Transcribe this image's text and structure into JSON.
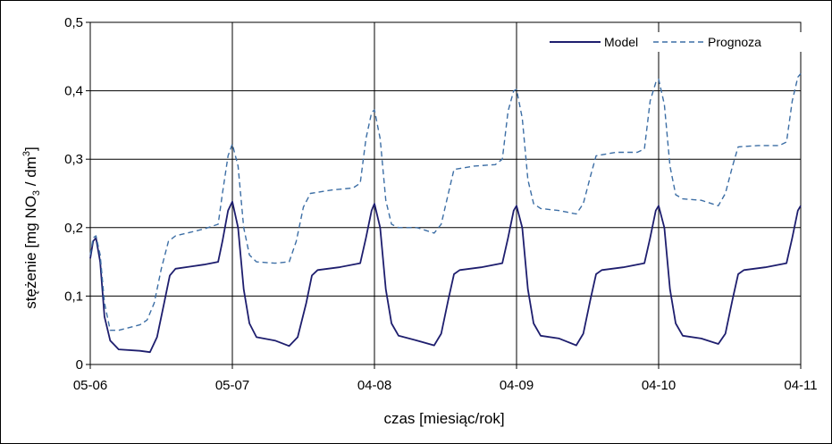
{
  "chart_data": {
    "type": "line",
    "title": "",
    "xlabel": "czas [miesiąc/rok]",
    "ylabel": "stężenie [mg NO₃ / dm³]",
    "ylabel_parts": {
      "main": "stężenie [mg NO",
      "sub": "3",
      "mid": " / dm",
      "sup": "3",
      "end": "]"
    },
    "x_categories": [
      "05-06",
      "05-07",
      "04-08",
      "04-09",
      "04-10",
      "04-11"
    ],
    "y_ticks": [
      "0",
      "0,1",
      "0,2",
      "0,3",
      "0,4",
      "0,5"
    ],
    "ylim": [
      0,
      0.5
    ],
    "grid": true,
    "legend_position": "top-right",
    "colors": {
      "model": "#1e1e6e",
      "prognoza": "#3c6ea5",
      "grid": "#000000"
    },
    "series": [
      {
        "name": "Model",
        "style": "solid",
        "points": [
          [
            0.0,
            0.155
          ],
          [
            0.02,
            0.18
          ],
          [
            0.04,
            0.185
          ],
          [
            0.07,
            0.15
          ],
          [
            0.1,
            0.07
          ],
          [
            0.14,
            0.035
          ],
          [
            0.2,
            0.022
          ],
          [
            0.35,
            0.02
          ],
          [
            0.42,
            0.018
          ],
          [
            0.47,
            0.04
          ],
          [
            0.52,
            0.09
          ],
          [
            0.56,
            0.13
          ],
          [
            0.6,
            0.14
          ],
          [
            0.7,
            0.143
          ],
          [
            0.8,
            0.146
          ],
          [
            0.9,
            0.15
          ],
          [
            0.93,
            0.18
          ],
          [
            0.97,
            0.225
          ],
          [
            1.0,
            0.238
          ],
          [
            1.04,
            0.2
          ],
          [
            1.08,
            0.11
          ],
          [
            1.12,
            0.06
          ],
          [
            1.17,
            0.04
          ],
          [
            1.3,
            0.035
          ],
          [
            1.4,
            0.027
          ],
          [
            1.46,
            0.04
          ],
          [
            1.52,
            0.09
          ],
          [
            1.56,
            0.13
          ],
          [
            1.6,
            0.138
          ],
          [
            1.75,
            0.142
          ],
          [
            1.9,
            0.148
          ],
          [
            1.94,
            0.185
          ],
          [
            1.98,
            0.225
          ],
          [
            2.0,
            0.235
          ],
          [
            2.04,
            0.2
          ],
          [
            2.08,
            0.11
          ],
          [
            2.12,
            0.06
          ],
          [
            2.17,
            0.042
          ],
          [
            2.3,
            0.035
          ],
          [
            2.42,
            0.028
          ],
          [
            2.47,
            0.045
          ],
          [
            2.52,
            0.095
          ],
          [
            2.56,
            0.132
          ],
          [
            2.6,
            0.138
          ],
          [
            2.75,
            0.142
          ],
          [
            2.9,
            0.148
          ],
          [
            2.94,
            0.185
          ],
          [
            2.98,
            0.225
          ],
          [
            3.0,
            0.232
          ],
          [
            3.04,
            0.2
          ],
          [
            3.08,
            0.11
          ],
          [
            3.12,
            0.06
          ],
          [
            3.17,
            0.042
          ],
          [
            3.3,
            0.038
          ],
          [
            3.42,
            0.028
          ],
          [
            3.47,
            0.045
          ],
          [
            3.52,
            0.095
          ],
          [
            3.56,
            0.132
          ],
          [
            3.6,
            0.138
          ],
          [
            3.75,
            0.142
          ],
          [
            3.9,
            0.148
          ],
          [
            3.94,
            0.185
          ],
          [
            3.98,
            0.225
          ],
          [
            4.0,
            0.232
          ],
          [
            4.04,
            0.2
          ],
          [
            4.08,
            0.11
          ],
          [
            4.12,
            0.06
          ],
          [
            4.17,
            0.042
          ],
          [
            4.3,
            0.038
          ],
          [
            4.42,
            0.03
          ],
          [
            4.47,
            0.045
          ],
          [
            4.52,
            0.095
          ],
          [
            4.56,
            0.132
          ],
          [
            4.6,
            0.138
          ],
          [
            4.75,
            0.142
          ],
          [
            4.9,
            0.148
          ],
          [
            4.94,
            0.185
          ],
          [
            4.98,
            0.225
          ],
          [
            5.0,
            0.232
          ]
        ]
      },
      {
        "name": "Prognoza",
        "style": "dashed",
        "points": [
          [
            0.0,
            0.16
          ],
          [
            0.02,
            0.185
          ],
          [
            0.04,
            0.188
          ],
          [
            0.07,
            0.16
          ],
          [
            0.1,
            0.09
          ],
          [
            0.14,
            0.05
          ],
          [
            0.2,
            0.05
          ],
          [
            0.35,
            0.058
          ],
          [
            0.4,
            0.065
          ],
          [
            0.45,
            0.09
          ],
          [
            0.5,
            0.14
          ],
          [
            0.55,
            0.18
          ],
          [
            0.6,
            0.188
          ],
          [
            0.7,
            0.193
          ],
          [
            0.8,
            0.198
          ],
          [
            0.9,
            0.205
          ],
          [
            0.93,
            0.25
          ],
          [
            0.97,
            0.305
          ],
          [
            1.0,
            0.322
          ],
          [
            1.04,
            0.29
          ],
          [
            1.08,
            0.2
          ],
          [
            1.12,
            0.16
          ],
          [
            1.17,
            0.15
          ],
          [
            1.3,
            0.148
          ],
          [
            1.4,
            0.15
          ],
          [
            1.45,
            0.18
          ],
          [
            1.5,
            0.23
          ],
          [
            1.55,
            0.25
          ],
          [
            1.7,
            0.255
          ],
          [
            1.85,
            0.258
          ],
          [
            1.9,
            0.265
          ],
          [
            1.94,
            0.33
          ],
          [
            1.98,
            0.368
          ],
          [
            2.0,
            0.372
          ],
          [
            2.04,
            0.33
          ],
          [
            2.08,
            0.24
          ],
          [
            2.12,
            0.205
          ],
          [
            2.17,
            0.2
          ],
          [
            2.3,
            0.2
          ],
          [
            2.42,
            0.192
          ],
          [
            2.47,
            0.205
          ],
          [
            2.52,
            0.25
          ],
          [
            2.56,
            0.285
          ],
          [
            2.7,
            0.29
          ],
          [
            2.85,
            0.292
          ],
          [
            2.9,
            0.3
          ],
          [
            2.94,
            0.37
          ],
          [
            2.98,
            0.4
          ],
          [
            3.0,
            0.402
          ],
          [
            3.04,
            0.36
          ],
          [
            3.08,
            0.27
          ],
          [
            3.12,
            0.235
          ],
          [
            3.17,
            0.228
          ],
          [
            3.3,
            0.225
          ],
          [
            3.42,
            0.22
          ],
          [
            3.47,
            0.235
          ],
          [
            3.52,
            0.275
          ],
          [
            3.56,
            0.305
          ],
          [
            3.7,
            0.31
          ],
          [
            3.85,
            0.31
          ],
          [
            3.9,
            0.315
          ],
          [
            3.94,
            0.385
          ],
          [
            3.98,
            0.412
          ],
          [
            4.0,
            0.417
          ],
          [
            4.04,
            0.38
          ],
          [
            4.08,
            0.29
          ],
          [
            4.12,
            0.248
          ],
          [
            4.17,
            0.242
          ],
          [
            4.3,
            0.24
          ],
          [
            4.42,
            0.232
          ],
          [
            4.47,
            0.25
          ],
          [
            4.52,
            0.29
          ],
          [
            4.56,
            0.318
          ],
          [
            4.7,
            0.32
          ],
          [
            4.85,
            0.32
          ],
          [
            4.9,
            0.325
          ],
          [
            4.94,
            0.385
          ],
          [
            4.98,
            0.42
          ],
          [
            5.0,
            0.425
          ]
        ]
      }
    ]
  }
}
